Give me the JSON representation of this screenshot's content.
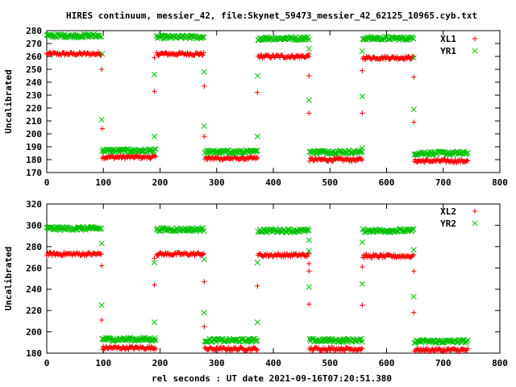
{
  "title": "HIRES continuum, messier_42, file:Skynet_59473_messier_42_62125_10965.cyb.txt",
  "x_axis_label": "rel seconds : UT date 2021-09-16T07:20:51.380",
  "colors": {
    "red_series": "#ff0000",
    "green_series": "#00c000",
    "axes": "#000000"
  },
  "chart_data": [
    {
      "type": "scatter",
      "ylabel": "Uncalibrated",
      "xlim": [
        0,
        800
      ],
      "ylim": [
        170,
        280
      ],
      "x_ticks": [
        "0",
        "100",
        "200",
        "300",
        "400",
        "500",
        "600",
        "700",
        "800"
      ],
      "y_ticks": [
        "170",
        "180",
        "190",
        "200",
        "210",
        "220",
        "230",
        "240",
        "250",
        "260",
        "270",
        "280"
      ],
      "legend_position": "top-right",
      "series": [
        {
          "name": "XL1",
          "marker": "plus",
          "color": "#ff0000",
          "segments": [
            {
              "x": [
                0,
                97
              ],
              "y": 262
            },
            {
              "x": [
                98,
                193
              ],
              "y": 182
            },
            {
              "x": [
                194,
                278
              ],
              "y": 262
            },
            {
              "x": [
                279,
                372
              ],
              "y": 181
            },
            {
              "x": [
                373,
                463
              ],
              "y": 260
            },
            {
              "x": [
                464,
                557
              ],
              "y": 180
            },
            {
              "x": [
                558,
                648
              ],
              "y": 259
            },
            {
              "x": [
                649,
                745
              ],
              "y": 179
            }
          ],
          "transitions": [
            [
              97,
              250
            ],
            [
              98,
              204
            ],
            [
              190,
              233
            ],
            [
              190,
              259
            ],
            [
              278,
              237
            ],
            [
              278,
              198
            ],
            [
              372,
              232
            ],
            [
              463,
              245
            ],
            [
              463,
              216
            ],
            [
              463,
              262
            ],
            [
              557,
              249
            ],
            [
              557,
              216
            ],
            [
              648,
              244
            ],
            [
              648,
              209
            ]
          ]
        },
        {
          "name": "YR1",
          "marker": "cross",
          "color": "#00c000",
          "segments": [
            {
              "x": [
                0,
                97
              ],
              "y": 276
            },
            {
              "x": [
                98,
                193
              ],
              "y": 187
            },
            {
              "x": [
                194,
                278
              ],
              "y": 275
            },
            {
              "x": [
                279,
                372
              ],
              "y": 186
            },
            {
              "x": [
                373,
                463
              ],
              "y": 274
            },
            {
              "x": [
                464,
                557
              ],
              "y": 186
            },
            {
              "x": [
                558,
                648
              ],
              "y": 274
            },
            {
              "x": [
                649,
                745
              ],
              "y": 185
            }
          ],
          "transitions": [
            [
              97,
              211
            ],
            [
              98,
              262
            ],
            [
              190,
              246
            ],
            [
              190,
              198
            ],
            [
              278,
              248
            ],
            [
              278,
              206
            ],
            [
              372,
              245
            ],
            [
              372,
              198
            ],
            [
              463,
              226
            ],
            [
              463,
              266
            ],
            [
              557,
              229
            ],
            [
              557,
              264
            ],
            [
              557,
              189
            ],
            [
              648,
              219
            ],
            [
              648,
              259
            ]
          ]
        }
      ]
    },
    {
      "type": "scatter",
      "ylabel": "Uncalibrated",
      "xlim": [
        0,
        800
      ],
      "ylim": [
        180,
        320
      ],
      "x_ticks": [
        "0",
        "100",
        "200",
        "300",
        "400",
        "500",
        "600",
        "700",
        "800"
      ],
      "y_ticks": [
        "180",
        "200",
        "220",
        "240",
        "260",
        "280",
        "300",
        "320"
      ],
      "legend_position": "top-right",
      "series": [
        {
          "name": "XL2",
          "marker": "plus",
          "color": "#ff0000",
          "segments": [
            {
              "x": [
                0,
                97
              ],
              "y": 273
            },
            {
              "x": [
                98,
                193
              ],
              "y": 185
            },
            {
              "x": [
                194,
                278
              ],
              "y": 273
            },
            {
              "x": [
                279,
                372
              ],
              "y": 184
            },
            {
              "x": [
                373,
                463
              ],
              "y": 272
            },
            {
              "x": [
                464,
                557
              ],
              "y": 184
            },
            {
              "x": [
                558,
                648
              ],
              "y": 271
            },
            {
              "x": [
                649,
                745
              ],
              "y": 183
            }
          ],
          "transitions": [
            [
              97,
              262
            ],
            [
              97,
              211
            ],
            [
              190,
              244
            ],
            [
              190,
              269
            ],
            [
              278,
              247
            ],
            [
              278,
              205
            ],
            [
              372,
              243
            ],
            [
              463,
              264
            ],
            [
              463,
              257
            ],
            [
              463,
              226
            ],
            [
              557,
              261
            ],
            [
              557,
              225
            ],
            [
              648,
              257
            ],
            [
              648,
              218
            ]
          ]
        },
        {
          "name": "YR2",
          "marker": "cross",
          "color": "#00c000",
          "segments": [
            {
              "x": [
                0,
                97
              ],
              "y": 297
            },
            {
              "x": [
                98,
                193
              ],
              "y": 193
            },
            {
              "x": [
                194,
                278
              ],
              "y": 296
            },
            {
              "x": [
                279,
                372
              ],
              "y": 192
            },
            {
              "x": [
                373,
                463
              ],
              "y": 295
            },
            {
              "x": [
                464,
                557
              ],
              "y": 192
            },
            {
              "x": [
                558,
                648
              ],
              "y": 295
            },
            {
              "x": [
                649,
                745
              ],
              "y": 191
            }
          ],
          "transitions": [
            [
              97,
              283
            ],
            [
              97,
              225
            ],
            [
              190,
              209
            ],
            [
              190,
              265
            ],
            [
              278,
              218
            ],
            [
              278,
              268
            ],
            [
              372,
              209
            ],
            [
              372,
              265
            ],
            [
              463,
              286
            ],
            [
              463,
              242
            ],
            [
              463,
              276
            ],
            [
              557,
              284
            ],
            [
              557,
              245
            ],
            [
              648,
              277
            ],
            [
              648,
              233
            ]
          ]
        }
      ]
    }
  ]
}
